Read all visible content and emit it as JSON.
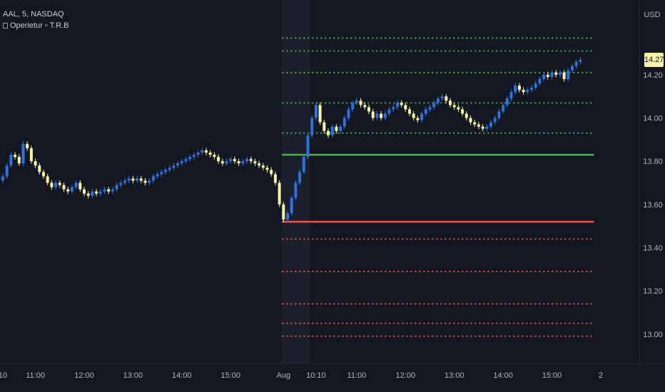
{
  "header": {
    "symbol_line": "AAL, 5, NASDAQ",
    "indicator_line": "Operietur ▫ T.R.B"
  },
  "price_axis": {
    "currency": "USD",
    "last_price": "14.27",
    "last_price_value": 14.27
  },
  "colors": {
    "background": "#131722",
    "session_shade": "#1b1f2b",
    "bull_candle": "#2f72dc",
    "bear_candle": "#f6f3a5",
    "green_level": "#4caf50",
    "red_level": "#ef5350",
    "axis_text": "#b2b5be",
    "grid": "#1e222d"
  },
  "chart_data": {
    "type": "candlestick",
    "symbol": "AAL",
    "interval": "5",
    "exchange": "NASDAQ",
    "ylim": [
      12.93,
      14.48
    ],
    "y_ticks": [
      13.0,
      13.2,
      13.4,
      13.6,
      13.8,
      14.0,
      14.2
    ],
    "y_tick_labels": [
      "13.00",
      "13.20",
      "13.40",
      "13.60",
      "13.80",
      "14.00",
      "14.20"
    ],
    "x_labels": [
      {
        "label": "10",
        "bar": 0
      },
      {
        "label": "11:00",
        "bar": 8
      },
      {
        "label": "12:00",
        "bar": 20
      },
      {
        "label": "13:00",
        "bar": 32
      },
      {
        "label": "14:00",
        "bar": 44
      },
      {
        "label": "15:00",
        "bar": 56
      },
      {
        "label": "Aug",
        "bar": 69
      },
      {
        "label": "10:10",
        "bar": 77
      },
      {
        "label": "11:00",
        "bar": 87
      },
      {
        "label": "12:00",
        "bar": 99
      },
      {
        "label": "13:00",
        "bar": 111
      },
      {
        "label": "14:00",
        "bar": 123
      },
      {
        "label": "15:00",
        "bar": 135
      },
      {
        "label": "2",
        "bar": 147
      }
    ],
    "session_start_bar": 69,
    "session_end_bar": 75,
    "levels": {
      "range_low": 13.52,
      "range_high": 13.83,
      "green_dotted": [
        13.93,
        14.07,
        14.21,
        14.31,
        14.37
      ],
      "red_dotted": [
        13.44,
        13.29,
        13.14,
        13.05,
        12.99
      ],
      "start_bar": 69,
      "end_bar": 145
    },
    "close_series": [
      13.73,
      13.78,
      13.83,
      13.82,
      13.79,
      13.88,
      13.86,
      13.8,
      13.78,
      13.75,
      13.73,
      13.7,
      13.68,
      13.7,
      13.69,
      13.67,
      13.66,
      13.68,
      13.7,
      13.67,
      13.65,
      13.64,
      13.66,
      13.65,
      13.66,
      13.67,
      13.66,
      13.67,
      13.69,
      13.7,
      13.71,
      13.72,
      13.71,
      13.72,
      13.71,
      13.7,
      13.71,
      13.73,
      13.74,
      13.75,
      13.76,
      13.77,
      13.78,
      13.79,
      13.8,
      13.81,
      13.82,
      13.83,
      13.84,
      13.85,
      13.84,
      13.83,
      13.82,
      13.8,
      13.79,
      13.8,
      13.81,
      13.8,
      13.79,
      13.8,
      13.81,
      13.8,
      13.79,
      13.78,
      13.77,
      13.76,
      13.74,
      13.7,
      13.6,
      13.53,
      13.56,
      13.63,
      13.7,
      13.75,
      13.82,
      13.92,
      14.0,
      14.06,
      13.98,
      13.94,
      13.92,
      13.96,
      13.94,
      13.96,
      14.0,
      14.04,
      14.07,
      14.08,
      14.06,
      14.05,
      14.03,
      14.0,
      14.02,
      14.0,
      14.02,
      14.04,
      14.05,
      14.07,
      14.06,
      14.04,
      14.02,
      14.0,
      13.99,
      14.02,
      14.04,
      14.05,
      14.07,
      14.09,
      14.1,
      14.08,
      14.06,
      14.05,
      14.04,
      14.02,
      14.0,
      13.98,
      13.97,
      13.96,
      13.95,
      13.96,
      13.98,
      14.0,
      14.03,
      14.06,
      14.09,
      14.12,
      14.15,
      14.13,
      14.12,
      14.13,
      14.14,
      14.16,
      14.18,
      14.2,
      14.19,
      14.21,
      14.2,
      14.21,
      14.18,
      14.22,
      14.24,
      14.26,
      14.27
    ]
  }
}
